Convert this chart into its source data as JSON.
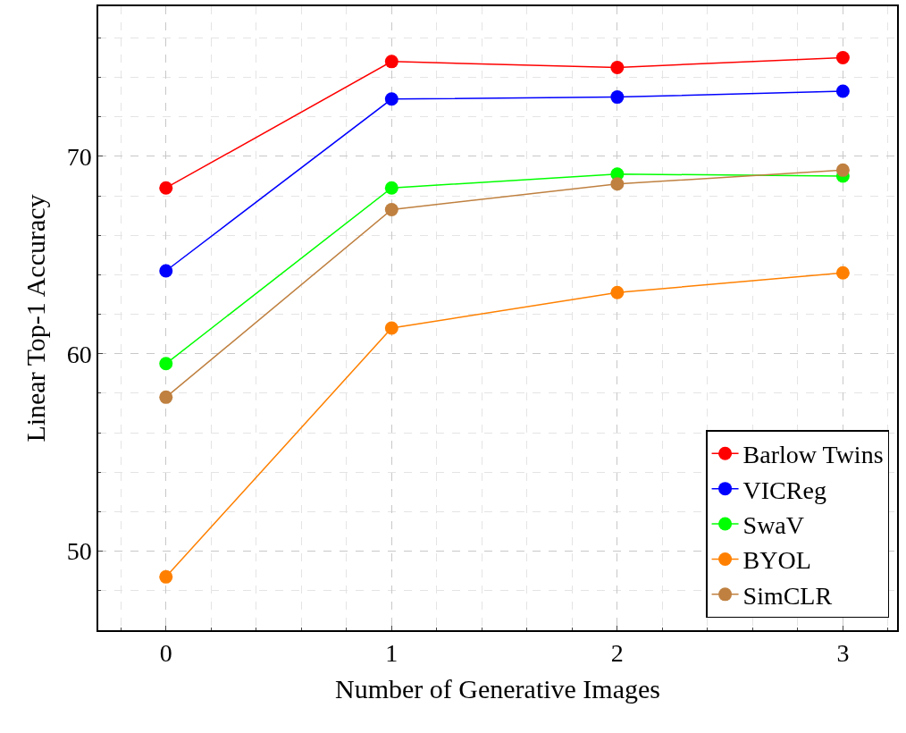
{
  "chart_data": {
    "type": "line",
    "xlabel": "Number of Generative Images",
    "ylabel": "Linear Top-1 Accuracy",
    "x": [
      0,
      1,
      2,
      3
    ],
    "series": [
      {
        "name": "Barlow Twins",
        "color": "#ff0000",
        "values": [
          68.4,
          74.8,
          74.5,
          75.0
        ]
      },
      {
        "name": "VICReg",
        "color": "#0000ff",
        "values": [
          64.2,
          72.9,
          73.0,
          73.3
        ]
      },
      {
        "name": "SwaV",
        "color": "#00ff00",
        "values": [
          59.5,
          68.4,
          69.1,
          69.0
        ]
      },
      {
        "name": "BYOL",
        "color": "#ff8000",
        "values": [
          48.7,
          61.3,
          63.1,
          64.1
        ]
      },
      {
        "name": "SimCLR",
        "color": "#bf8040",
        "values": [
          57.8,
          67.3,
          68.6,
          69.3
        ]
      }
    ],
    "xlim": [
      -0.3,
      3.24
    ],
    "ylim": [
      46,
      77.6
    ],
    "xticks": [
      0,
      1,
      2,
      3
    ],
    "yticks": [
      50,
      60,
      70
    ],
    "grid": true,
    "legend": "bottom right",
    "marker": "circle",
    "line_style": "solid"
  }
}
